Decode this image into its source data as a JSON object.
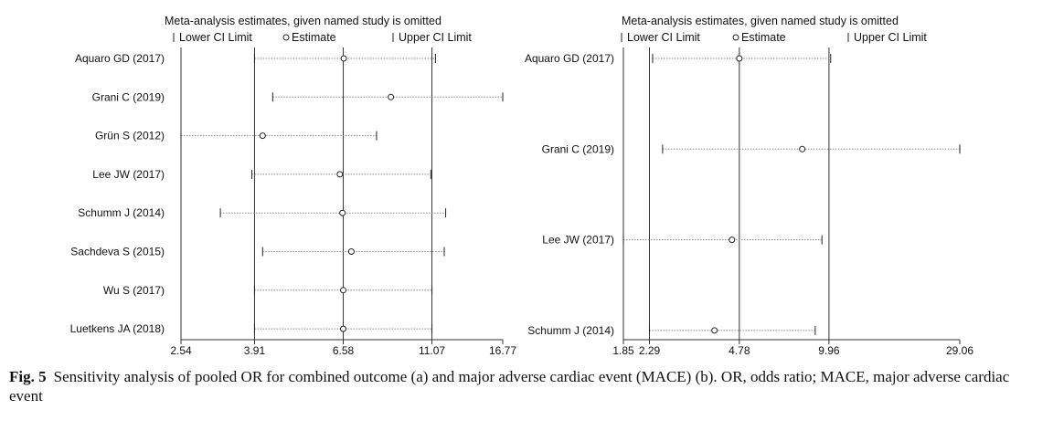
{
  "chart_data": [
    {
      "type": "forest",
      "panel": "a",
      "title": "Meta-analysis estimates, given named study is omitted",
      "legend": {
        "lower": "Lower CI Limit",
        "estimate": "Estimate",
        "upper": "Upper CI Limit",
        "placement": "top"
      },
      "studies": [
        {
          "label": "Aquaro GD (2017)",
          "lower": 3.91,
          "estimate": 6.6,
          "upper": 11.3
        },
        {
          "label": "Grani C (2019)",
          "lower": 4.35,
          "estimate": 8.7,
          "upper": 16.77
        },
        {
          "label": "Grün S (2012)",
          "lower": 2.54,
          "estimate": 4.1,
          "upper": 8.0
        },
        {
          "label": "Lee JW (2017)",
          "lower": 3.85,
          "estimate": 6.45,
          "upper": 11.0
        },
        {
          "label": "Schumm J (2014)",
          "lower": 3.2,
          "estimate": 6.55,
          "upper": 12.0
        },
        {
          "label": "Sachdeva S (2015)",
          "lower": 4.1,
          "estimate": 6.9,
          "upper": 11.9
        },
        {
          "label": "Wu S (2017)",
          "lower": 3.91,
          "estimate": 6.58,
          "upper": 11.07
        },
        {
          "label": "Luetkens JA (2018)",
          "lower": 3.91,
          "estimate": 6.58,
          "upper": 11.07
        }
      ],
      "xticks": [
        "2.54",
        "3.91",
        "6.58",
        "11.07",
        "16.77"
      ],
      "refs": [
        3.91,
        6.58,
        11.07
      ],
      "xlim": [
        2.54,
        16.77
      ]
    },
    {
      "type": "forest",
      "panel": "b",
      "title": "Meta-analysis estimates, given named study is omitted",
      "legend": {
        "lower": "Lower CI Limit",
        "estimate": "Estimate",
        "upper": "Upper CI Limit",
        "placement": "top"
      },
      "studies": [
        {
          "label": "Aquaro GD (2017)",
          "lower": 2.35,
          "estimate": 4.78,
          "upper": 10.1
        },
        {
          "label": "Grani C (2019)",
          "lower": 2.55,
          "estimate": 8.0,
          "upper": 29.06
        },
        {
          "label": "Lee JW (2017)",
          "lower": 1.85,
          "estimate": 4.5,
          "upper": 9.4
        },
        {
          "label": "Schumm J (2014)",
          "lower": 2.29,
          "estimate": 3.9,
          "upper": 8.9
        }
      ],
      "xticks": [
        "1.85",
        "2.29",
        "4.78",
        "9.96",
        "29.06"
      ],
      "refs": [
        2.29,
        4.78,
        9.96
      ],
      "xlim": [
        1.85,
        29.06
      ]
    }
  ],
  "caption": {
    "label": "Fig. 5",
    "text": "Sensitivity analysis of pooled OR for combined outcome (a) and major adverse cardiac event (MACE) (b). OR, odds ratio; MACE, major adverse cardiac event"
  }
}
